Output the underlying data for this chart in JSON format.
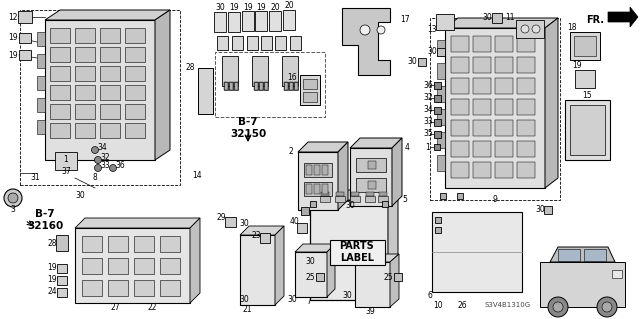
{
  "bg_color": "#ffffff",
  "diagram_code": "S3V4B1310G",
  "fr_label": "FR.",
  "b7_32150_label": "B-7\n32150",
  "b7_32160_label": "B-7\n32160",
  "parts_label": "PARTS\nLABEL",
  "line_color": "#000000",
  "component_fill": "#e8e8e8",
  "component_dark": "#b0b0b0",
  "component_mid": "#cccccc",
  "dashed_color": "#555555"
}
